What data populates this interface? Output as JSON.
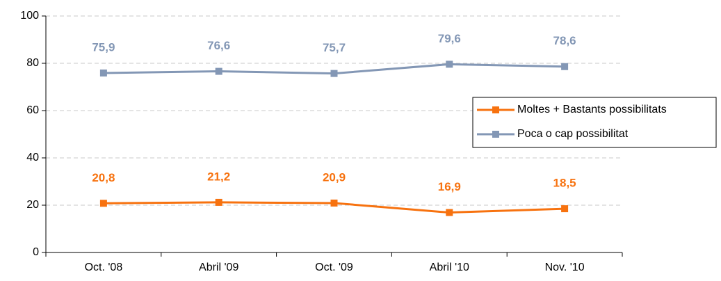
{
  "chart_data": {
    "type": "line",
    "categories": [
      "Oct. '08",
      "Abril '09",
      "Oct. '09",
      "Abril '10",
      "Nov. '10"
    ],
    "series": [
      {
        "name": "Moltes + Bastants possibilitats",
        "color": "#f7720f",
        "values": [
          20.8,
          21.2,
          20.9,
          16.9,
          18.5
        ],
        "value_labels": [
          "20,8",
          "21,2",
          "20,9",
          "16,9",
          "18,5"
        ]
      },
      {
        "name": "Poca o cap possibilitat",
        "color": "#8397b5",
        "values": [
          75.9,
          76.6,
          75.7,
          79.6,
          78.6
        ],
        "value_labels": [
          "75,9",
          "76,6",
          "75,7",
          "79,6",
          "78,6"
        ]
      }
    ],
    "ylim": [
      0,
      100
    ],
    "yticks": [
      0,
      20,
      40,
      60,
      80,
      100
    ],
    "grid": true,
    "legend": "right"
  }
}
